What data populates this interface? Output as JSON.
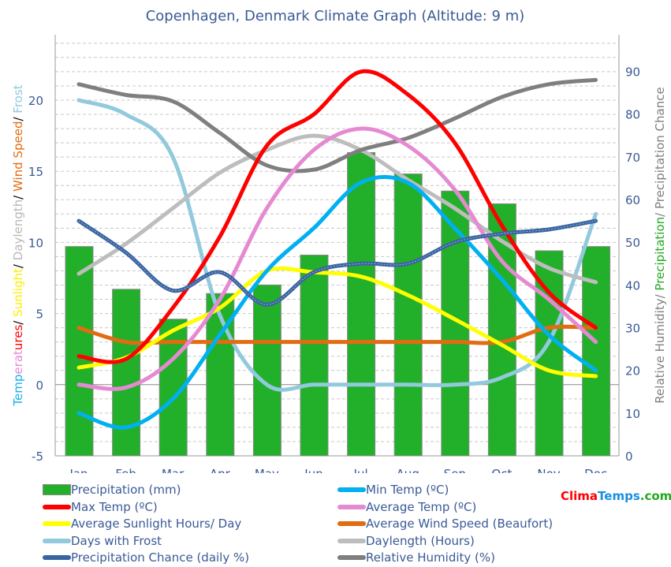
{
  "chart_data": {
    "type": "bar+line",
    "title": "Copenhagen, Denmark Climate Graph (Altitude: 9 m)",
    "categories": [
      "Jan",
      "Feb",
      "Mar",
      "Apr",
      "May",
      "Jun",
      "Jul",
      "Aug",
      "Sep",
      "Oct",
      "Nov",
      "Dec"
    ],
    "left_axis": {
      "label_parts": [
        {
          "text": "Temperatures",
          "colors": [
            "#1ab0e8",
            "#e58ad2",
            "#ff0000"
          ]
        },
        {
          "text": "/ ",
          "color": "#000000"
        },
        {
          "text": "Sunlight",
          "color": "#ffee00"
        },
        {
          "text": "/ ",
          "color": "#000000"
        },
        {
          "text": "Daylength",
          "color": "#b8b8b8"
        },
        {
          "text": "/ ",
          "color": "#000000"
        },
        {
          "text": "Wind Speed",
          "color": "#e36b12"
        },
        {
          "text": "/ ",
          "color": "#000000"
        },
        {
          "text": "Frost",
          "color": "#92c9dc"
        }
      ],
      "ylim": [
        -5,
        24.6
      ],
      "ticks": [
        -5,
        0,
        5,
        10,
        15,
        20
      ]
    },
    "right_axis": {
      "label_parts": [
        {
          "text": "Relative Humidity/ ",
          "color": "#808080"
        },
        {
          "text": "Precipitation",
          "color": "#22aa22"
        },
        {
          "text": "/ Precipitation Chance",
          "color": "#808080"
        }
      ],
      "ylim": [
        0,
        98.6
      ],
      "ticks": [
        0,
        10,
        20,
        30,
        40,
        50,
        60,
        70,
        80,
        90
      ]
    },
    "series": [
      {
        "name": "Precipitation (mm)",
        "type": "bar",
        "axis": "right",
        "color": "#22b02a",
        "values": [
          49,
          39,
          32,
          38,
          40,
          47,
          71,
          66,
          62,
          59,
          48,
          49
        ]
      },
      {
        "name": "Min Temp (ºC)",
        "type": "line",
        "axis": "left",
        "color": "#00b0f0",
        "values": [
          -2,
          -3,
          -1,
          3.5,
          8,
          11,
          14.2,
          14.2,
          11,
          7.4,
          3.5,
          1
        ]
      },
      {
        "name": "Max Temp (ºC)",
        "type": "line",
        "axis": "left",
        "color": "#ff0000",
        "values": [
          2,
          1.8,
          5.4,
          10.4,
          16.8,
          19,
          22,
          20.4,
          17,
          11.2,
          6.5,
          4
        ]
      },
      {
        "name": "Average Temp (ºC)",
        "type": "line",
        "axis": "left",
        "color": "#e58ad2",
        "values": [
          0,
          -0.2,
          1.8,
          6,
          12.4,
          16.5,
          18,
          16.8,
          13.7,
          8.7,
          6,
          3
        ]
      },
      {
        "name": "Average Sunlight Hours/ Day",
        "type": "line",
        "axis": "left",
        "color": "#ffff00",
        "values": [
          1.2,
          1.9,
          3.8,
          5.4,
          8,
          7.9,
          7.6,
          6.3,
          4.6,
          2.8,
          1,
          0.6
        ]
      },
      {
        "name": "Average Wind Speed (Beaufort)",
        "type": "line",
        "axis": "left",
        "color": "#e36b12",
        "values": [
          4,
          3,
          3,
          3,
          3,
          3,
          3,
          3,
          3,
          3,
          4,
          4
        ]
      },
      {
        "name": "Days with Frost",
        "type": "line",
        "axis": "left",
        "color": "#92c9dc",
        "values": [
          20,
          19,
          16,
          4.9,
          0,
          0,
          0,
          0,
          0,
          0.5,
          3,
          12
        ]
      },
      {
        "name": "Daylength (Hours)",
        "type": "line",
        "axis": "left",
        "color": "#bdbdbd",
        "values": [
          7.8,
          9.9,
          12.4,
          14.9,
          16.5,
          17.5,
          16.5,
          14.4,
          12.4,
          10.1,
          8.2,
          7.2
        ]
      },
      {
        "name": "Precipitation Chance (daily %)",
        "type": "line",
        "axis": "right",
        "color": "#3a64a0",
        "values": [
          55,
          47.6,
          38.7,
          43,
          35.4,
          43,
          45,
          45,
          50,
          52,
          53,
          55
        ]
      },
      {
        "name": "Relative Humidity (%)",
        "type": "line",
        "axis": "right",
        "color": "#7f7f7f",
        "values": [
          87,
          84.5,
          83,
          75.6,
          68,
          67,
          71.6,
          74.4,
          79,
          84,
          87,
          88
        ]
      }
    ],
    "grid": true,
    "legend_position": "bottom"
  },
  "logo": {
    "text_parts": [
      {
        "text": "Clima",
        "color": "#ff0000"
      },
      {
        "text": "Temps",
        "color": "#1a8fe0"
      },
      {
        "text": ".com",
        "color": "#22aa22"
      }
    ]
  }
}
